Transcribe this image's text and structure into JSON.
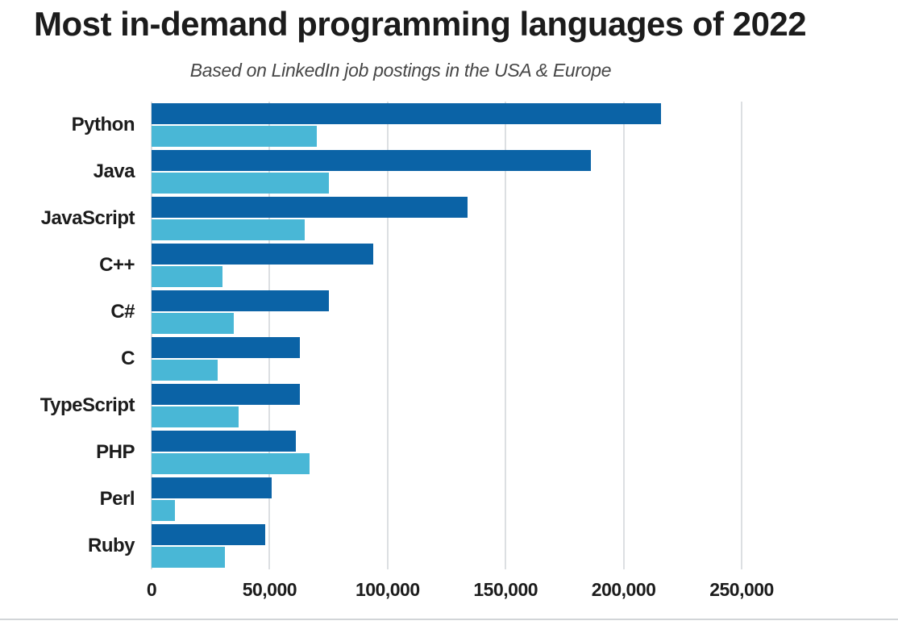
{
  "chart_data": {
    "type": "bar",
    "orientation": "horizontal",
    "title": "Most in-demand programming languages of 2022",
    "subtitle": "Based on LinkedIn job postings in the USA & Europe",
    "categories": [
      "Python",
      "Java",
      "JavaScript",
      "C++",
      "C#",
      "C",
      "TypeScript",
      "PHP",
      "Perl",
      "Ruby"
    ],
    "series": [
      {
        "name": "dark-blue",
        "color": "#0b63a6",
        "values": [
          216000,
          186000,
          134000,
          94000,
          75000,
          63000,
          63000,
          61000,
          51000,
          48000
        ]
      },
      {
        "name": "light-blue",
        "color": "#49b7d6",
        "values": [
          70000,
          75000,
          65000,
          30000,
          35000,
          28000,
          37000,
          67000,
          10000,
          31000
        ]
      }
    ],
    "x_ticks": [
      0,
      50000,
      100000,
      150000,
      200000,
      250000
    ],
    "x_tick_labels": [
      "0",
      "50,000",
      "100,000",
      "150,000",
      "200,000",
      "250,000"
    ],
    "xlim": [
      0,
      316250
    ],
    "ylabel": "",
    "xlabel": "",
    "grid": "vertical",
    "legend": "none"
  },
  "colors": {
    "background": "#ffffff",
    "gridline": "#dcdfe2",
    "text": "#1c1c1c",
    "subtitle_text": "#474747",
    "bottom_rule": "#d2d5d8"
  }
}
